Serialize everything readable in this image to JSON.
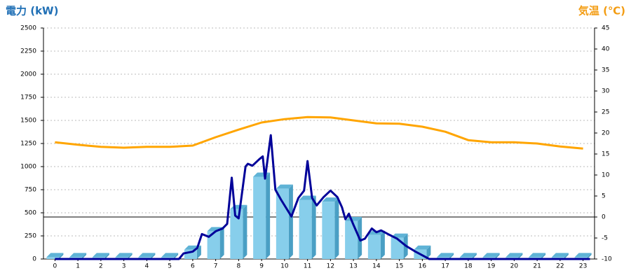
{
  "chart_data": {
    "type": "combo",
    "y_title": "電力 (kW)",
    "y2_title": "気温 (℃)",
    "categories": [
      "0",
      "1",
      "2",
      "3",
      "4",
      "5",
      "6",
      "7",
      "8",
      "9",
      "10",
      "11",
      "12",
      "13",
      "14",
      "15",
      "16",
      "17",
      "18",
      "19",
      "20",
      "21",
      "22",
      "23"
    ],
    "ylim": [
      0,
      2500
    ],
    "yticks": [
      0,
      250,
      500,
      750,
      1000,
      1250,
      1500,
      1750,
      2000,
      2250,
      2500
    ],
    "y2lim": [
      -10,
      45
    ],
    "y2ticks": [
      -10,
      -5,
      0,
      5,
      10,
      15,
      20,
      25,
      30,
      35,
      40,
      45
    ],
    "grid": true,
    "series": [
      {
        "type": "bar",
        "color": "#87ceeb",
        "values": [
          20,
          20,
          20,
          20,
          20,
          20,
          100,
          300,
          540,
          890,
          760,
          640,
          620,
          410,
          260,
          230,
          100,
          20,
          20,
          20,
          20,
          20,
          20,
          20
        ]
      },
      {
        "type": "line",
        "color": "#000099",
        "x": [
          0,
          5.4,
          5.6,
          6.0,
          6.2,
          6.4,
          6.7,
          7.0,
          7.3,
          7.5,
          7.7,
          7.85,
          8.0,
          8.3,
          8.4,
          8.6,
          8.9,
          9.05,
          9.15,
          9.4,
          9.6,
          9.85,
          10.3,
          10.6,
          10.85,
          11.0,
          11.2,
          11.4,
          11.7,
          12.0,
          12.3,
          12.5,
          12.65,
          12.8,
          13.0,
          13.3,
          13.5,
          13.8,
          14.0,
          14.2,
          14.5,
          14.9,
          15.3,
          15.7,
          16.0,
          16.3,
          23.3
        ],
        "values": [
          0,
          0,
          60,
          80,
          120,
          270,
          240,
          300,
          330,
          380,
          880,
          470,
          440,
          1000,
          1030,
          1010,
          1080,
          1110,
          870,
          1340,
          750,
          640,
          460,
          660,
          740,
          1060,
          660,
          580,
          670,
          740,
          670,
          560,
          430,
          490,
          370,
          200,
          220,
          330,
          290,
          310,
          270,
          220,
          140,
          80,
          40,
          0,
          0
        ]
      },
      {
        "type": "line",
        "axis": "y2",
        "color": "#ffa500",
        "values": [
          17.8,
          17.2,
          16.7,
          16.5,
          16.7,
          16.7,
          17,
          19,
          20.8,
          22.5,
          23.3,
          23.8,
          23.7,
          23,
          22.3,
          22.2,
          21.5,
          20.3,
          18.3,
          17.8,
          17.8,
          17.5,
          16.8,
          16.3
        ]
      }
    ]
  }
}
